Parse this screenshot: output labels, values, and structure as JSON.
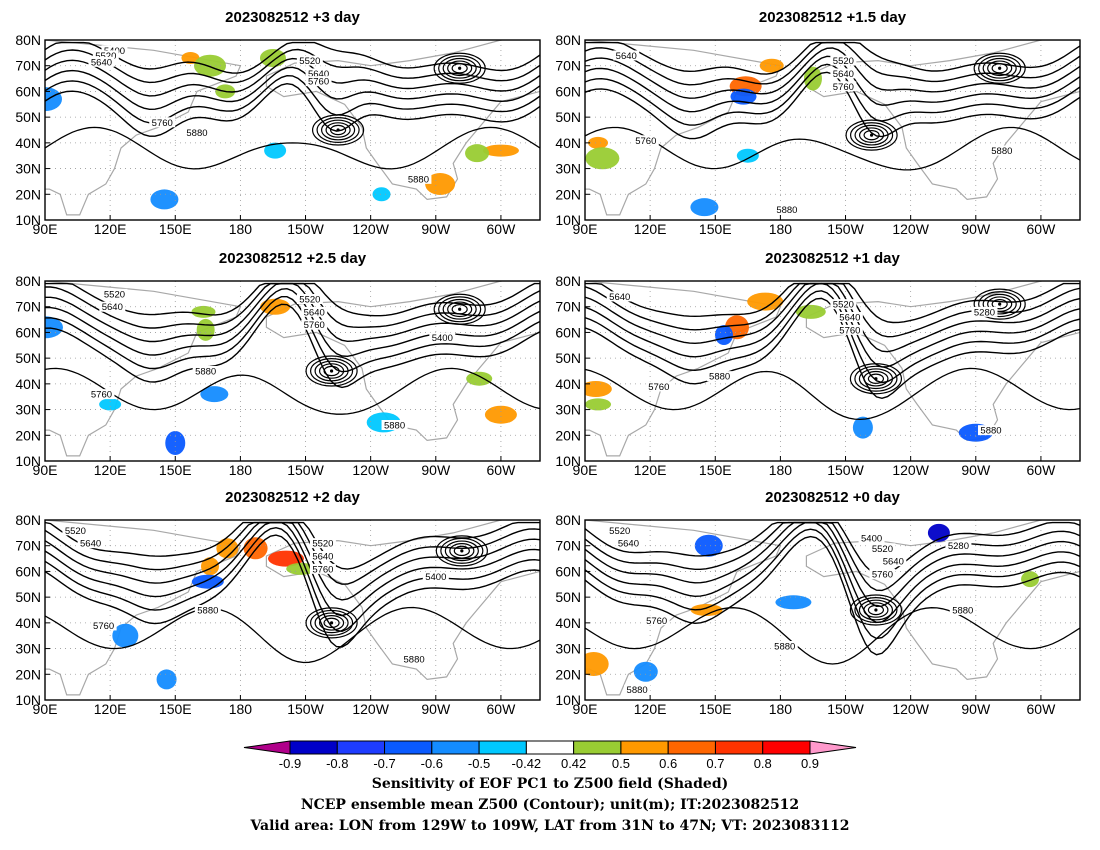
{
  "figure": {
    "caption_lines": [
      "Sensitivity of EOF PC1 to Z500 field (Shaded)",
      "NCEP ensemble mean Z500 (Contour); unit(m); IT:2023082512",
      "Valid area: LON from 129W to 109W, LAT from 31N to 47N; VT: 2023083112"
    ]
  },
  "axes": {
    "lat_labels": [
      "80N",
      "70N",
      "60N",
      "50N",
      "40N",
      "30N",
      "20N",
      "10N"
    ],
    "lon_labels": [
      "90E",
      "120E",
      "150E",
      "180",
      "150W",
      "120W",
      "90W",
      "60W"
    ]
  },
  "colorbar": {
    "tick_labels": [
      "-0.9",
      "-0.8",
      "-0.7",
      "-0.6",
      "-0.5",
      "-0.42",
      "0.42",
      "0.5",
      "0.6",
      "0.7",
      "0.8",
      "0.9"
    ],
    "colors": [
      "#b0008a",
      "#0000c8",
      "#1e3cff",
      "#0a5aff",
      "#148cff",
      "#00c8ff",
      "#ffffff",
      "#99cc33",
      "#ff9900",
      "#ff6600",
      "#ff3300",
      "#ff0000",
      "#ff99cc"
    ]
  },
  "colors": {
    "contour": "#000000",
    "coastline": "#a8a8a8",
    "grid": "#9a9a9a"
  },
  "panels": [
    {
      "title": "2023082512 +3 day",
      "contour_labels": [
        {
          "text": "5400",
          "lon": 122,
          "lat": 76
        },
        {
          "text": "5520",
          "lon": 118,
          "lat": 74
        },
        {
          "text": "5640",
          "lon": 116,
          "lat": 71.5
        },
        {
          "text": "5520",
          "lon": 212,
          "lat": 72
        },
        {
          "text": "5640",
          "lon": 216,
          "lat": 67
        },
        {
          "text": "5760",
          "lon": 216,
          "lat": 64
        },
        {
          "text": "5760",
          "lon": 144,
          "lat": 48
        },
        {
          "text": "5880",
          "lon": 160,
          "lat": 44
        },
        {
          "text": "5880",
          "lon": 262,
          "lat": 26
        }
      ],
      "highs": [
        {
          "lon": 281,
          "lat": 69
        },
        {
          "lon": 225,
          "lat": 45
        }
      ],
      "shading": [
        {
          "lon": 157,
          "lat": 73,
          "color": "#ff9900"
        },
        {
          "lon": 166,
          "lat": 70,
          "color": "#99cc33"
        },
        {
          "lon": 195,
          "lat": 73,
          "color": "#99cc33"
        },
        {
          "lon": 173,
          "lat": 60,
          "color": "#99cc33"
        },
        {
          "lon": 90,
          "lat": 57,
          "color": "#148cff"
        },
        {
          "lon": 145,
          "lat": 18,
          "color": "#148cff"
        },
        {
          "lon": 196,
          "lat": 37,
          "color": "#00c8ff"
        },
        {
          "lon": 300,
          "lat": 37,
          "color": "#ff9900"
        },
        {
          "lon": 272,
          "lat": 24,
          "color": "#ff9900"
        },
        {
          "lon": 289,
          "lat": 36,
          "color": "#99cc33"
        },
        {
          "lon": 245,
          "lat": 20,
          "color": "#00c8ff"
        }
      ]
    },
    {
      "title": "2023082512 +1.5 day",
      "contour_labels": [
        {
          "text": "5640",
          "lon": 109,
          "lat": 74
        },
        {
          "text": "5520",
          "lon": 209,
          "lat": 72
        },
        {
          "text": "5640",
          "lon": 209,
          "lat": 67
        },
        {
          "text": "5760",
          "lon": 209,
          "lat": 62
        },
        {
          "text": "5760",
          "lon": 118,
          "lat": 41
        },
        {
          "text": "5880",
          "lon": 282,
          "lat": 37
        },
        {
          "text": "5880",
          "lon": 183,
          "lat": 14
        }
      ],
      "highs": [
        {
          "lon": 281,
          "lat": 69
        },
        {
          "lon": 222,
          "lat": 43
        }
      ],
      "shading": [
        {
          "lon": 176,
          "lat": 70,
          "color": "#ff9900"
        },
        {
          "lon": 195,
          "lat": 65,
          "color": "#99cc33"
        },
        {
          "lon": 164,
          "lat": 62,
          "color": "#ff6600"
        },
        {
          "lon": 163,
          "lat": 58,
          "color": "#0a5aff"
        },
        {
          "lon": 96,
          "lat": 40,
          "color": "#ff9900"
        },
        {
          "lon": 98,
          "lat": 34,
          "color": "#99cc33"
        },
        {
          "lon": 145,
          "lat": 15,
          "color": "#148cff"
        },
        {
          "lon": 165,
          "lat": 35,
          "color": "#00c8ff"
        }
      ]
    },
    {
      "title": "2023082512 +2.5 day",
      "contour_labels": [
        {
          "text": "5520",
          "lon": 122,
          "lat": 75
        },
        {
          "text": "5640",
          "lon": 121,
          "lat": 70
        },
        {
          "text": "5520",
          "lon": 212,
          "lat": 73
        },
        {
          "text": "5640",
          "lon": 214,
          "lat": 68
        },
        {
          "text": "5760",
          "lon": 214,
          "lat": 63
        },
        {
          "text": "5400",
          "lon": 273,
          "lat": 58
        },
        {
          "text": "5760",
          "lon": 116,
          "lat": 36
        },
        {
          "text": "5880",
          "lon": 164,
          "lat": 45
        },
        {
          "text": "5880",
          "lon": 251,
          "lat": 24
        }
      ],
      "highs": [
        {
          "lon": 281,
          "lat": 69
        },
        {
          "lon": 222,
          "lat": 45
        }
      ],
      "shading": [
        {
          "lon": 196,
          "lat": 70,
          "color": "#ff9900"
        },
        {
          "lon": 163,
          "lat": 68,
          "color": "#99cc33"
        },
        {
          "lon": 164,
          "lat": 61,
          "color": "#99cc33"
        },
        {
          "lon": 300,
          "lat": 28,
          "color": "#ff9900"
        },
        {
          "lon": 290,
          "lat": 42,
          "color": "#99cc33"
        },
        {
          "lon": 150,
          "lat": 17,
          "color": "#0a5aff"
        },
        {
          "lon": 246,
          "lat": 25,
          "color": "#00c8ff"
        },
        {
          "lon": 168,
          "lat": 36,
          "color": "#148cff"
        },
        {
          "lon": 120,
          "lat": 32,
          "color": "#00c8ff"
        },
        {
          "lon": 90,
          "lat": 62,
          "color": "#148cff"
        }
      ]
    },
    {
      "title": "2023082512 +1 day",
      "contour_labels": [
        {
          "text": "5640",
          "lon": 106,
          "lat": 74
        },
        {
          "text": "5520",
          "lon": 209,
          "lat": 71
        },
        {
          "text": "5640",
          "lon": 212,
          "lat": 66
        },
        {
          "text": "5760",
          "lon": 212,
          "lat": 61
        },
        {
          "text": "5280",
          "lon": 274,
          "lat": 68
        },
        {
          "text": "5760",
          "lon": 124,
          "lat": 39
        },
        {
          "text": "5880",
          "lon": 152,
          "lat": 43
        },
        {
          "text": "5880",
          "lon": 277,
          "lat": 22
        }
      ],
      "highs": [
        {
          "lon": 281,
          "lat": 71
        },
        {
          "lon": 224,
          "lat": 42
        }
      ],
      "shading": [
        {
          "lon": 173,
          "lat": 72,
          "color": "#ff9900"
        },
        {
          "lon": 194,
          "lat": 68,
          "color": "#99cc33"
        },
        {
          "lon": 160,
          "lat": 62,
          "color": "#ff6600"
        },
        {
          "lon": 154,
          "lat": 59,
          "color": "#0a5aff"
        },
        {
          "lon": 95,
          "lat": 38,
          "color": "#ff9900"
        },
        {
          "lon": 96,
          "lat": 32,
          "color": "#99cc33"
        },
        {
          "lon": 218,
          "lat": 23,
          "color": "#148cff"
        },
        {
          "lon": 270,
          "lat": 21,
          "color": "#0a5aff"
        }
      ]
    },
    {
      "title": "2023082512 +2 day",
      "contour_labels": [
        {
          "text": "5520",
          "lon": 104,
          "lat": 76
        },
        {
          "text": "5640",
          "lon": 111,
          "lat": 71
        },
        {
          "text": "5520",
          "lon": 218,
          "lat": 71
        },
        {
          "text": "5640",
          "lon": 218,
          "lat": 66
        },
        {
          "text": "5760",
          "lon": 218,
          "lat": 61
        },
        {
          "text": "5400",
          "lon": 270,
          "lat": 58
        },
        {
          "text": "5880",
          "lon": 165,
          "lat": 45
        },
        {
          "text": "5760",
          "lon": 117,
          "lat": 39
        },
        {
          "text": "5880",
          "lon": 260,
          "lat": 26
        }
      ],
      "highs": [
        {
          "lon": 282,
          "lat": 68
        },
        {
          "lon": 222,
          "lat": 40
        }
      ],
      "shading": [
        {
          "lon": 174,
          "lat": 69,
          "color": "#ff9900"
        },
        {
          "lon": 201,
          "lat": 65,
          "color": "#ff3300"
        },
        {
          "lon": 208,
          "lat": 61,
          "color": "#99cc33"
        },
        {
          "lon": 187,
          "lat": 69,
          "color": "#ff6600"
        },
        {
          "lon": 166,
          "lat": 62,
          "color": "#ff9900"
        },
        {
          "lon": 165,
          "lat": 56,
          "color": "#0a5aff"
        },
        {
          "lon": 127,
          "lat": 35,
          "color": "#148cff"
        },
        {
          "lon": 146,
          "lat": 18,
          "color": "#148cff"
        }
      ]
    },
    {
      "title": "2023082512 +0 day",
      "contour_labels": [
        {
          "text": "5520",
          "lon": 106,
          "lat": 76
        },
        {
          "text": "5640",
          "lon": 110,
          "lat": 71
        },
        {
          "text": "5400",
          "lon": 222,
          "lat": 73
        },
        {
          "text": "5280",
          "lon": 262,
          "lat": 70
        },
        {
          "text": "5520",
          "lon": 227,
          "lat": 69
        },
        {
          "text": "5640",
          "lon": 232,
          "lat": 64
        },
        {
          "text": "5760",
          "lon": 227,
          "lat": 59
        },
        {
          "text": "5880",
          "lon": 264,
          "lat": 45
        },
        {
          "text": "5760",
          "lon": 123,
          "lat": 41
        },
        {
          "text": "5880",
          "lon": 182,
          "lat": 31
        },
        {
          "text": "5880",
          "lon": 114,
          "lat": 14
        }
      ],
      "highs": [
        {
          "lon": 224,
          "lat": 45
        }
      ],
      "shading": [
        {
          "lon": 147,
          "lat": 70,
          "color": "#0a5aff"
        },
        {
          "lon": 253,
          "lat": 75,
          "color": "#0000c8"
        },
        {
          "lon": 186,
          "lat": 48,
          "color": "#148cff"
        },
        {
          "lon": 94,
          "lat": 24,
          "color": "#ff9900"
        },
        {
          "lon": 118,
          "lat": 21,
          "color": "#148cff"
        },
        {
          "lon": 295,
          "lat": 57,
          "color": "#99cc33"
        },
        {
          "lon": 146,
          "lat": 45,
          "color": "#ff9900"
        }
      ]
    }
  ]
}
